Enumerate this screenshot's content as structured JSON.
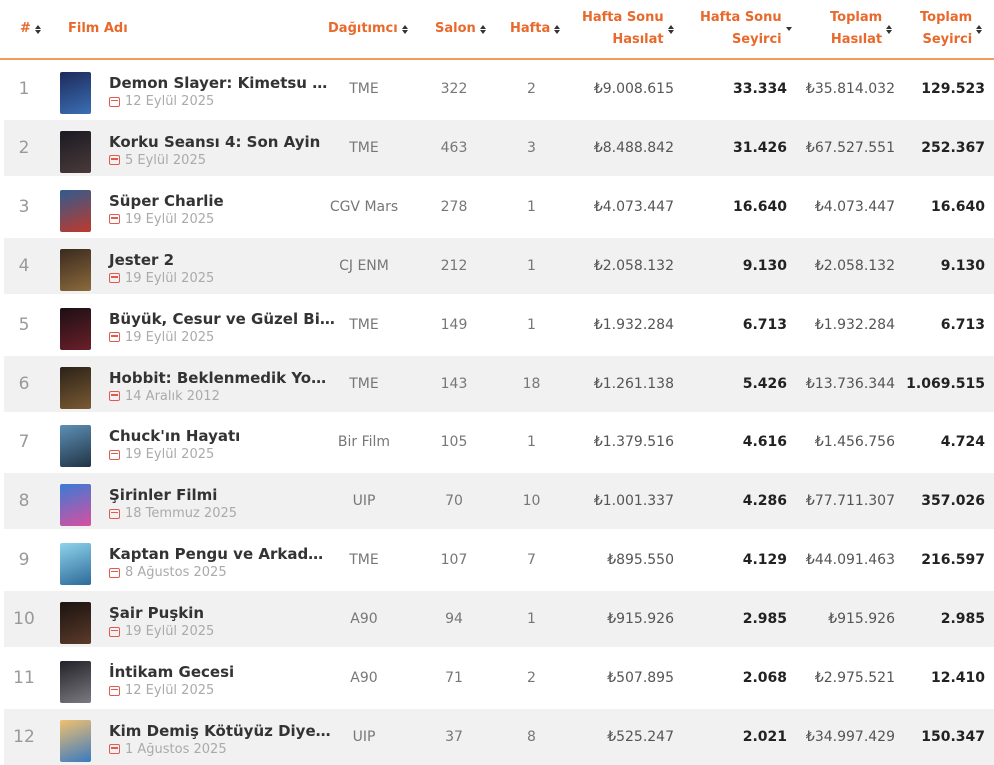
{
  "header": {
    "rank": "#",
    "film": "Film Adı",
    "distributor": "Dağıtımcı",
    "salon": "Salon",
    "week": "Hafta",
    "weekend_gross_1": "Hafta Sonu",
    "weekend_gross_2": "Hasılat",
    "weekend_adm_1": "Hafta Sonu",
    "weekend_adm_2": "Seyirci",
    "total_gross_1": "Toplam",
    "total_gross_2": "Hasılat",
    "total_adm_1": "Toplam",
    "total_adm_2": "Seyirci"
  },
  "rows": [
    {
      "rank": "1",
      "title": "Demon Slayer: Kimetsu …",
      "date": "12 Eylül 2025",
      "distributor": "TME",
      "salon": "322",
      "week": "2",
      "weekend_gross": "₺9.008.615",
      "weekend_adm": "33.334",
      "total_gross": "₺35.814.032",
      "total_adm": "129.523",
      "poster": [
        "#1d2a5a",
        "#3b6fb5"
      ]
    },
    {
      "rank": "2",
      "title": "Korku Seansı 4: Son Ayin",
      "date": "5 Eylül 2025",
      "distributor": "TME",
      "salon": "463",
      "week": "3",
      "weekend_gross": "₺8.488.842",
      "weekend_adm": "31.426",
      "total_gross": "₺67.527.551",
      "total_adm": "252.367",
      "poster": [
        "#1a1a22",
        "#4a3a3a"
      ]
    },
    {
      "rank": "3",
      "title": "Süper Charlie",
      "date": "19 Eylül 2025",
      "distributor": "CGV Mars",
      "salon": "278",
      "week": "1",
      "weekend_gross": "₺4.073.447",
      "weekend_adm": "16.640",
      "total_gross": "₺4.073.447",
      "total_adm": "16.640",
      "poster": [
        "#2f5c8f",
        "#c0392b"
      ]
    },
    {
      "rank": "4",
      "title": "Jester 2",
      "date": "19 Eylül 2025",
      "distributor": "CJ ENM",
      "salon": "212",
      "week": "1",
      "weekend_gross": "₺2.058.132",
      "weekend_adm": "9.130",
      "total_gross": "₺2.058.132",
      "total_adm": "9.130",
      "poster": [
        "#3a2a1e",
        "#8c6a3c"
      ]
    },
    {
      "rank": "5",
      "title": "Büyük, Cesur ve Güzel Bi…",
      "date": "19 Eylül 2025",
      "distributor": "TME",
      "salon": "149",
      "week": "1",
      "weekend_gross": "₺1.932.284",
      "weekend_adm": "6.713",
      "total_gross": "₺1.932.284",
      "total_adm": "6.713",
      "poster": [
        "#1c0f14",
        "#6b1f2a"
      ]
    },
    {
      "rank": "6",
      "title": "Hobbit: Beklenmedik Yo…",
      "date": "14 Aralık 2012",
      "distributor": "TME",
      "salon": "143",
      "week": "18",
      "weekend_gross": "₺1.261.138",
      "weekend_adm": "5.426",
      "total_gross": "₺13.736.344",
      "total_adm": "1.069.515",
      "poster": [
        "#2b2218",
        "#7a5a34"
      ]
    },
    {
      "rank": "7",
      "title": "Chuck'ın Hayatı",
      "date": "19 Eylül 2025",
      "distributor": "Bir Film",
      "salon": "105",
      "week": "1",
      "weekend_gross": "₺1.379.516",
      "weekend_adm": "4.616",
      "total_gross": "₺1.456.756",
      "total_adm": "4.724",
      "poster": [
        "#5e8fb5",
        "#203445"
      ]
    },
    {
      "rank": "8",
      "title": "Şirinler Filmi",
      "date": "18 Temmuz 2025",
      "distributor": "UIP",
      "salon": "70",
      "week": "10",
      "weekend_gross": "₺1.001.337",
      "weekend_adm": "4.286",
      "total_gross": "₺77.711.307",
      "total_adm": "357.026",
      "poster": [
        "#3a7bd5",
        "#d94fa0"
      ]
    },
    {
      "rank": "9",
      "title": "Kaptan Pengu ve Arkad…",
      "date": "8 Ağustos 2025",
      "distributor": "TME",
      "salon": "107",
      "week": "7",
      "weekend_gross": "₺895.550",
      "weekend_adm": "4.129",
      "total_gross": "₺44.091.463",
      "total_adm": "216.597",
      "poster": [
        "#8fd3ea",
        "#2c6a9a"
      ]
    },
    {
      "rank": "10",
      "title": "Şair Puşkin",
      "date": "19 Eylül 2025",
      "distributor": "A90",
      "salon": "94",
      "week": "1",
      "weekend_gross": "₺915.926",
      "weekend_adm": "2.985",
      "total_gross": "₺915.926",
      "total_adm": "2.985",
      "poster": [
        "#1a1310",
        "#5c3a2a"
      ]
    },
    {
      "rank": "11",
      "title": "İntikam Gecesi",
      "date": "12 Eylül 2025",
      "distributor": "A90",
      "salon": "71",
      "week": "2",
      "weekend_gross": "₺507.895",
      "weekend_adm": "2.068",
      "total_gross": "₺2.975.521",
      "total_adm": "12.410",
      "poster": [
        "#222228",
        "#7a7a80"
      ]
    },
    {
      "rank": "12",
      "title": "Kim Demiş Kötüyüz Diye…",
      "date": "1 Ağustos 2025",
      "distributor": "UIP",
      "salon": "37",
      "week": "8",
      "weekend_gross": "₺525.247",
      "weekend_adm": "2.021",
      "total_gross": "₺34.997.429",
      "total_adm": "150.347",
      "poster": [
        "#f0c070",
        "#3a7ac0"
      ]
    }
  ]
}
